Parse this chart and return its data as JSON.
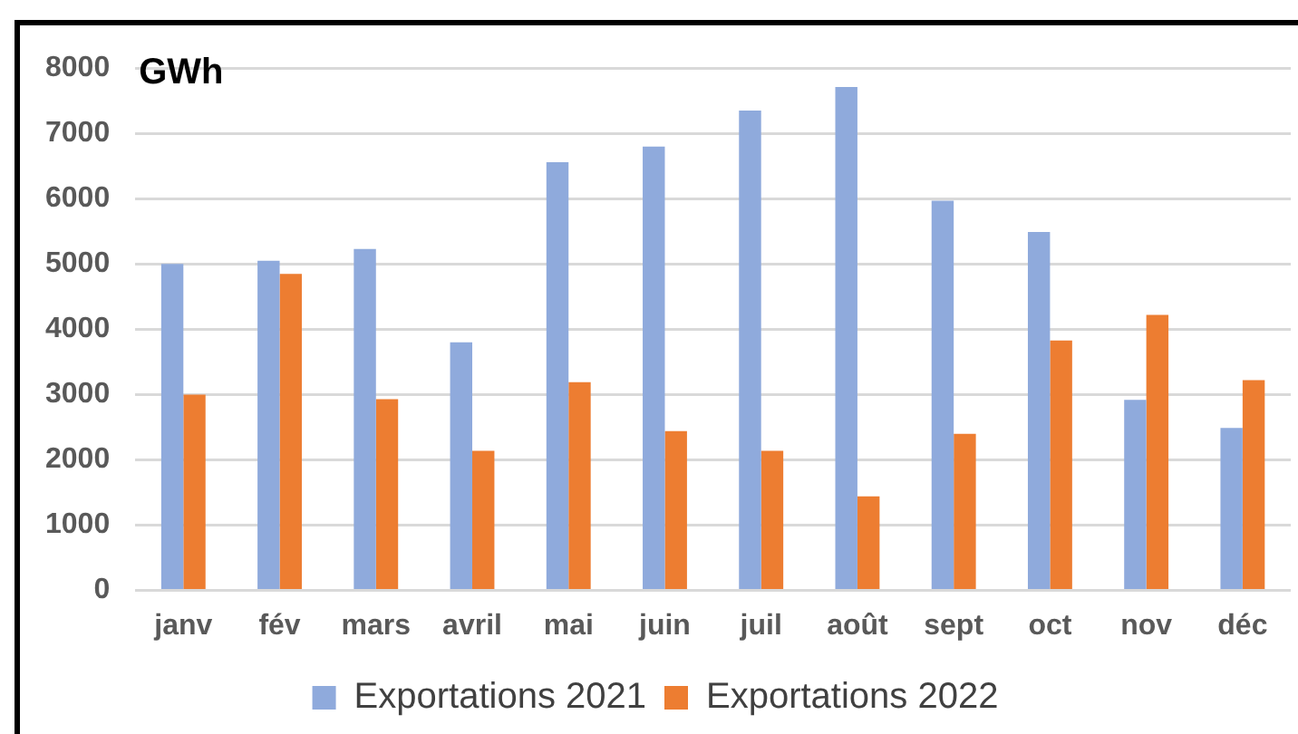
{
  "chart_data": {
    "type": "bar",
    "ylabel": "GWh",
    "categories": [
      "janv",
      "fév",
      "mars",
      "avril",
      "mai",
      "juin",
      "juil",
      "août",
      "sept",
      "oct",
      "nov",
      "déc"
    ],
    "series": [
      {
        "name": "Exportations 2021",
        "color": "#8faadc",
        "values": [
          5000,
          5050,
          5230,
          3800,
          6560,
          6800,
          7350,
          7710,
          5970,
          5490,
          2920,
          2490
        ]
      },
      {
        "name": "Exportations 2022",
        "color": "#ed7d31",
        "values": [
          3000,
          4850,
          2930,
          2140,
          3190,
          2440,
          2140,
          1440,
          2400,
          3830,
          4220,
          3220
        ]
      }
    ],
    "ylim": [
      0,
      8000
    ],
    "yticks": [
      0,
      1000,
      2000,
      3000,
      4000,
      5000,
      6000,
      7000,
      8000
    ],
    "grid": "y",
    "legend": "bottom"
  }
}
